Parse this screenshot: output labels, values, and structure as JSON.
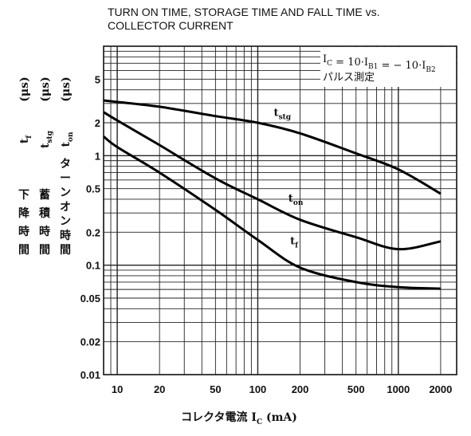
{
  "chart_data": {
    "type": "line",
    "title_lines": [
      "TURN ON TIME, STORAGE TIME AND FALL TIME vs.",
      "COLLECTOR CURRENT"
    ],
    "x_scale": "log",
    "y_scale": "log",
    "xlim": [
      8,
      2600
    ],
    "ylim": [
      0.01,
      10
    ],
    "x_ticks": [
      10,
      20,
      50,
      100,
      200,
      500,
      1000,
      2000
    ],
    "y_ticks": [
      0.01,
      0.02,
      0.05,
      0.1,
      0.2,
      0.5,
      1,
      2,
      5
    ],
    "grid": true,
    "xlabel": {
      "text": "コレクタ電流",
      "var": "I",
      "sub": "C",
      "unit": "(mA)"
    },
    "ylabels": [
      {
        "kanji": "下降時間",
        "var": "t",
        "sub": "f",
        "unit": "(μs)"
      },
      {
        "kanji": "蓄積時間",
        "var": "t",
        "sub": "stg",
        "unit": "(μs)"
      },
      {
        "kanji": "ターンオン時間",
        "var": "t",
        "sub": "on",
        "unit": "(μs)"
      }
    ],
    "condition": {
      "line1": {
        "parts": [
          {
            "t": "I",
            "s": "C"
          },
          {
            "t": " = 10·I",
            "s": "B1"
          },
          {
            "t": " = − 10·I",
            "s": "B2"
          }
        ]
      },
      "line2": "パルス測定"
    },
    "series": [
      {
        "name": "t",
        "sub": "stg",
        "x": [
          8,
          10,
          20,
          50,
          100,
          200,
          500,
          1000,
          2000
        ],
        "y": [
          3.2,
          3.1,
          2.8,
          2.3,
          2.0,
          1.6,
          1.05,
          0.75,
          0.45
        ]
      },
      {
        "name": "t",
        "sub": "on",
        "x": [
          8,
          10,
          20,
          50,
          100,
          200,
          500,
          1000,
          2000
        ],
        "y": [
          2.5,
          2.1,
          1.25,
          0.62,
          0.4,
          0.26,
          0.18,
          0.14,
          0.165
        ]
      },
      {
        "name": "t",
        "sub": "f",
        "x": [
          8,
          10,
          20,
          50,
          100,
          200,
          500,
          1000,
          2000
        ],
        "y": [
          1.5,
          1.2,
          0.7,
          0.32,
          0.17,
          0.095,
          0.07,
          0.063,
          0.061
        ]
      }
    ],
    "series_label_at": [
      {
        "x": 130,
        "y": 2.3
      },
      {
        "x": 165,
        "y": 0.38
      },
      {
        "x": 170,
        "y": 0.155
      }
    ]
  }
}
